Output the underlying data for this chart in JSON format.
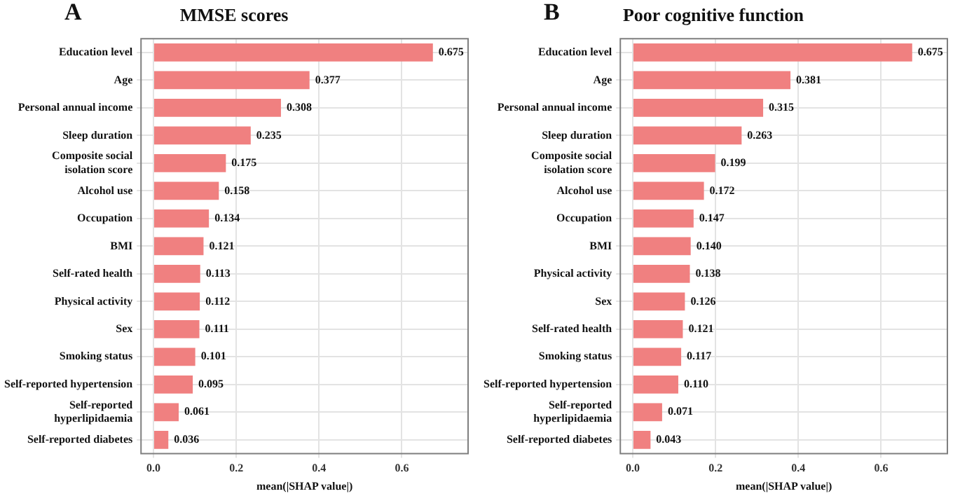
{
  "chart_data": [
    {
      "type": "bar",
      "orientation": "horizontal",
      "title": "MMSE scores",
      "annotations": [
        "A"
      ],
      "xlabel": "mean(|SHAP value|)",
      "color": "#f08080",
      "grid": true,
      "categories": [
        "Education level",
        "Age",
        "Personal annual income",
        "Sleep duration",
        "Composite social isolation score",
        "Alcohol use",
        "Occupation",
        "BMI",
        "Self-rated health",
        "Physical activity",
        "Sex",
        "Smoking status",
        "Self-reported hypertension",
        "Self-reported hyperlipidaemia",
        "Self-reported diabetes"
      ],
      "values": [
        0.675,
        0.377,
        0.308,
        0.235,
        0.175,
        0.158,
        0.134,
        0.121,
        0.113,
        0.112,
        0.111,
        0.101,
        0.095,
        0.061,
        0.036
      ],
      "value_labels": [
        "0.675",
        "0.377",
        "0.308",
        "0.235",
        "0.175",
        "0.158",
        "0.134",
        "0.121",
        "0.113",
        "0.112",
        "0.111",
        "0.101",
        "0.095",
        "0.061",
        "0.036"
      ],
      "xlim": [
        -0.03,
        0.76
      ],
      "xticks": [
        {
          "value": 0,
          "label": "0.0"
        },
        {
          "value": 0.2,
          "label": "0.2"
        },
        {
          "value": 0.4,
          "label": "0.4"
        },
        {
          "value": 0.6,
          "label": "0.6"
        }
      ]
    },
    {
      "type": "bar",
      "orientation": "horizontal",
      "title": "Poor cognitive function",
      "annotations": [
        "B"
      ],
      "xlabel": "mean(|SHAP value|)",
      "color": "#f08080",
      "grid": true,
      "categories": [
        "Education level",
        "Age",
        "Personal annual income",
        "Sleep duration",
        "Composite social isolation score",
        "Alcohol use",
        "Occupation",
        "BMI",
        "Physical activity",
        "Sex",
        "Self-rated health",
        "Smoking status",
        "Self-reported hypertension",
        "Self-reported hyperlipidaemia",
        "Self-reported diabetes"
      ],
      "values": [
        0.675,
        0.381,
        0.315,
        0.263,
        0.199,
        0.172,
        0.147,
        0.14,
        0.138,
        0.126,
        0.121,
        0.117,
        0.11,
        0.071,
        0.043
      ],
      "value_labels": [
        "0.675",
        "0.381",
        "0.315",
        "0.263",
        "0.199",
        "0.172",
        "0.147",
        "0.140",
        "0.138",
        "0.126",
        "0.121",
        "0.117",
        "0.110",
        "0.071",
        "0.043"
      ],
      "xlim": [
        -0.03,
        0.76
      ],
      "xticks": [
        {
          "value": 0,
          "label": "0.0"
        },
        {
          "value": 0.2,
          "label": "0.2"
        },
        {
          "value": 0.4,
          "label": "0.4"
        },
        {
          "value": 0.6,
          "label": "0.6"
        }
      ]
    }
  ]
}
